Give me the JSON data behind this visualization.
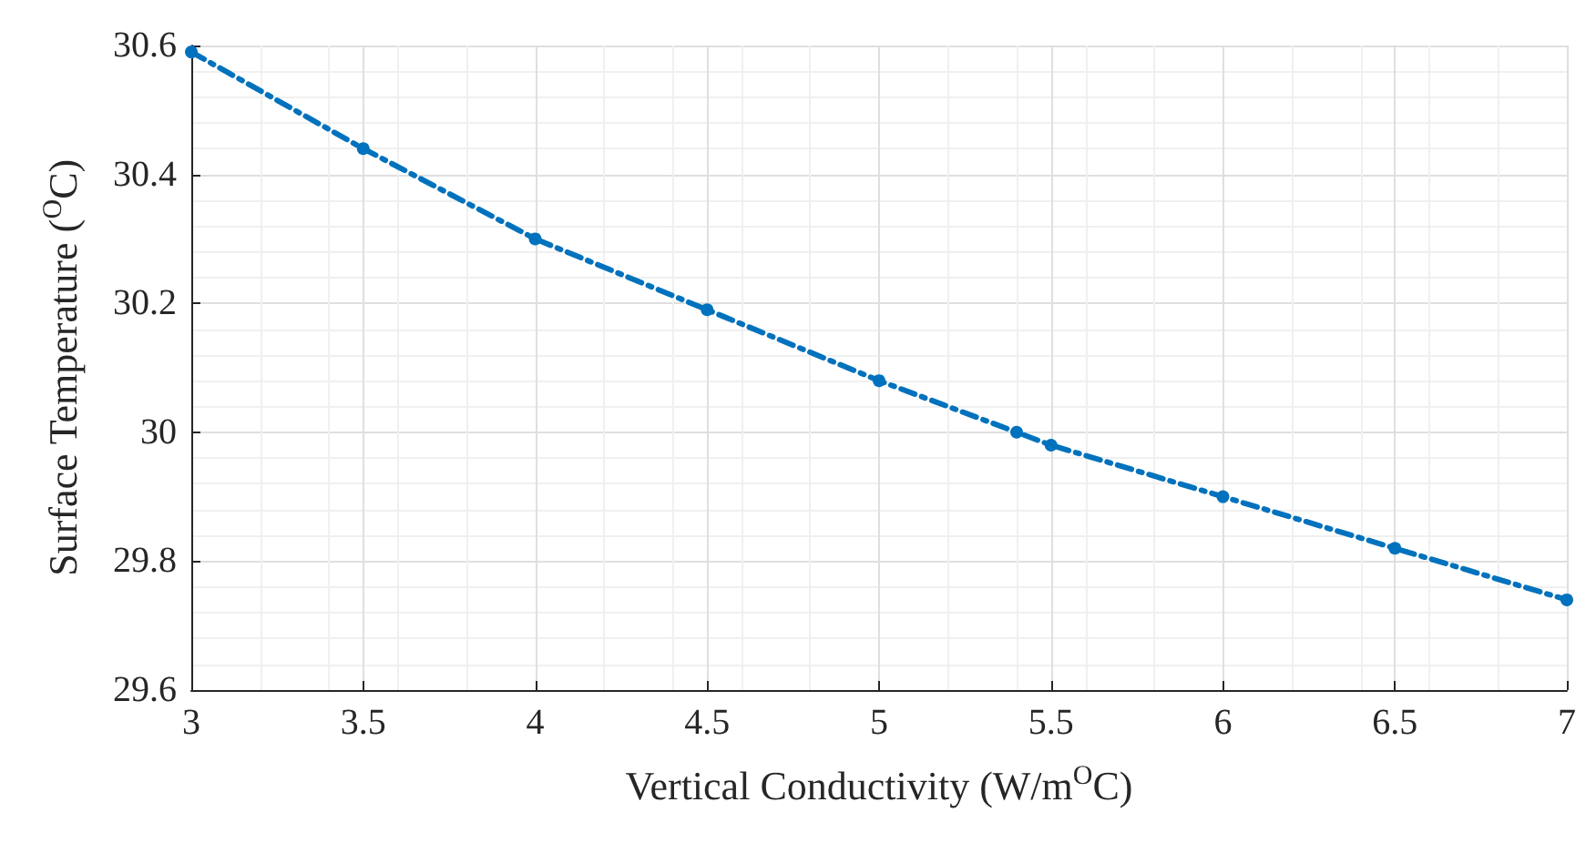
{
  "chart_data": {
    "type": "line",
    "xlabel": "Vertical Conductivity (W/m$^{O}$C)",
    "ylabel": "Surface Temperature ($^{O}$C)",
    "x": [
      3,
      3.5,
      4,
      4.5,
      5,
      5.4,
      5.5,
      6,
      6.5,
      7
    ],
    "series": [
      {
        "color": "#0072bd",
        "values": [
          30.59,
          30.44,
          30.3,
          30.19,
          30.08,
          30.0,
          29.98,
          29.9,
          29.82,
          29.74
        ]
      }
    ],
    "xlim": [
      3,
      7
    ],
    "xticks": [
      3,
      3.5,
      4,
      4.5,
      5,
      5.5,
      6,
      6.5,
      7
    ],
    "ylim": [
      29.6,
      30.6
    ],
    "yticks": [
      29.6,
      29.8,
      30,
      30.2,
      30.4,
      30.6
    ],
    "grid": true,
    "marker": "circle",
    "line_style": "dashed"
  }
}
